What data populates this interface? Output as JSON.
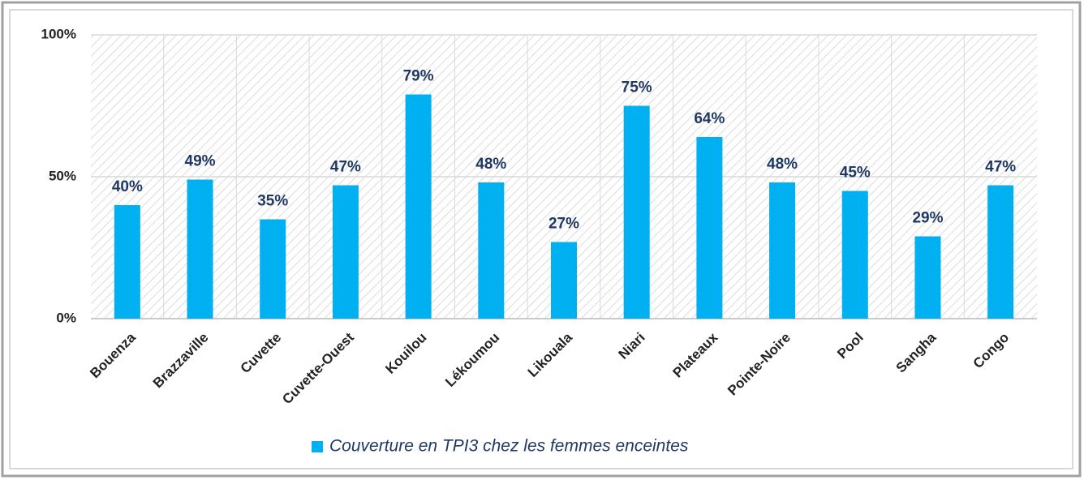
{
  "chart_data": {
    "type": "bar",
    "categories": [
      "Bouenza",
      "Brazzaville",
      "Cuvette",
      "Cuvette-Ouest",
      "Kouilou",
      "Lékoumou",
      "Likouala",
      "Niari",
      "Plateaux",
      "Pointe-Noire",
      "Pool",
      "Sangha",
      "Congo"
    ],
    "series": [
      {
        "name": "Couverture en TPI3 chez les femmes enceintes",
        "color": "#00b0f0",
        "values": [
          40,
          49,
          35,
          47,
          79,
          48,
          27,
          75,
          64,
          48,
          45,
          29,
          47
        ],
        "value_labels": [
          "40%",
          "49%",
          "35%",
          "47%",
          "79%",
          "48%",
          "27%",
          "75%",
          "64%",
          "48%",
          "45%",
          "29%",
          "47%"
        ]
      }
    ],
    "ylim": [
      0,
      100
    ],
    "yticks": [
      {
        "value": 0,
        "label": "0%"
      },
      {
        "value": 50,
        "label": "50%"
      },
      {
        "value": 100,
        "label": "100%"
      }
    ],
    "grid": true,
    "legend": "bottom"
  }
}
